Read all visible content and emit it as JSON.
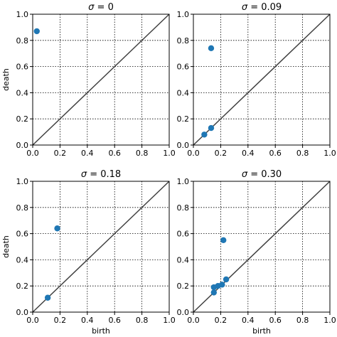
{
  "chart_data": [
    {
      "type": "scatter",
      "title": "σ = 0",
      "title_symbol": "σ",
      "title_value": "0",
      "xlabel": "",
      "ylabel": "death",
      "xlim": [
        0,
        1
      ],
      "ylim": [
        0,
        1
      ],
      "xticks": [
        "0.0",
        "0.2",
        "0.4",
        "0.6",
        "0.8",
        "1.0"
      ],
      "yticks": [
        "0.0",
        "0.2",
        "0.4",
        "0.6",
        "0.8",
        "1.0"
      ],
      "grid": true,
      "diagonal": true,
      "points": [
        {
          "x": 0.03,
          "y": 0.87
        }
      ]
    },
    {
      "type": "scatter",
      "title": "σ = 0.09",
      "title_symbol": "σ",
      "title_value": "0.09",
      "xlabel": "",
      "ylabel": "",
      "xlim": [
        0,
        1
      ],
      "ylim": [
        0,
        1
      ],
      "xticks": [
        "0.0",
        "0.2",
        "0.4",
        "0.6",
        "0.8",
        "1.0"
      ],
      "yticks": [
        "0.0",
        "0.2",
        "0.4",
        "0.6",
        "0.8",
        "1.0"
      ],
      "grid": true,
      "diagonal": true,
      "points": [
        {
          "x": 0.13,
          "y": 0.74
        },
        {
          "x": 0.13,
          "y": 0.13
        },
        {
          "x": 0.08,
          "y": 0.08
        }
      ]
    },
    {
      "type": "scatter",
      "title": "σ = 0.18",
      "title_symbol": "σ",
      "title_value": "0.18",
      "xlabel": "birth",
      "ylabel": "death",
      "xlim": [
        0,
        1
      ],
      "ylim": [
        0,
        1
      ],
      "xticks": [
        "0.0",
        "0.2",
        "0.4",
        "0.6",
        "0.8",
        "1.0"
      ],
      "yticks": [
        "0.0",
        "0.2",
        "0.4",
        "0.6",
        "0.8",
        "1.0"
      ],
      "grid": true,
      "diagonal": true,
      "points": [
        {
          "x": 0.18,
          "y": 0.64
        },
        {
          "x": 0.11,
          "y": 0.11
        }
      ]
    },
    {
      "type": "scatter",
      "title": "σ = 0.30",
      "title_symbol": "σ",
      "title_value": "0.30",
      "xlabel": "birth",
      "ylabel": "",
      "xlim": [
        0,
        1
      ],
      "ylim": [
        0,
        1
      ],
      "xticks": [
        "0.0",
        "0.2",
        "0.4",
        "0.6",
        "0.8",
        "1.0"
      ],
      "yticks": [
        "0.0",
        "0.2",
        "0.4",
        "0.6",
        "0.8",
        "1.0"
      ],
      "grid": true,
      "diagonal": true,
      "points": [
        {
          "x": 0.22,
          "y": 0.55
        },
        {
          "x": 0.24,
          "y": 0.25
        },
        {
          "x": 0.21,
          "y": 0.21
        },
        {
          "x": 0.18,
          "y": 0.2
        },
        {
          "x": 0.15,
          "y": 0.19
        },
        {
          "x": 0.15,
          "y": 0.15
        }
      ]
    }
  ],
  "colors": {
    "point": "#1f77b4",
    "diagonal": "#404040",
    "grid": "#000000",
    "axes": "#000000"
  }
}
